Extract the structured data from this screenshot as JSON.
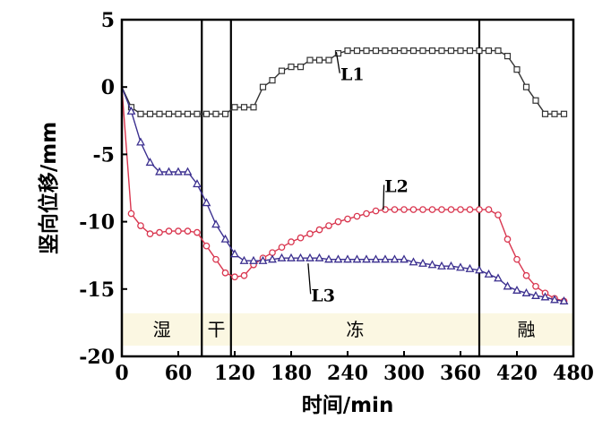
{
  "chart_data": {
    "type": "line",
    "title": "",
    "xlabel": "时间/min",
    "ylabel": "竖向位移/mm",
    "xlim": [
      0,
      480
    ],
    "ylim": [
      -20,
      5
    ],
    "xticks": [
      0,
      60,
      120,
      180,
      240,
      300,
      360,
      420,
      480
    ],
    "yticks": [
      5,
      0,
      -5,
      -10,
      -15,
      -20
    ],
    "grid": false,
    "legend": "none",
    "phase_boundaries": [
      85,
      116,
      380
    ],
    "phases": [
      {
        "label": "湿",
        "from": 0,
        "to": 85
      },
      {
        "label": "干",
        "from": 85,
        "to": 116
      },
      {
        "label": "冻",
        "from": 116,
        "to": 380
      },
      {
        "label": "融",
        "from": 380,
        "to": 480
      }
    ],
    "phase_band_ylim": [
      -19.2,
      -16.8
    ],
    "phase_band_color": "#fbf7e2",
    "series": [
      {
        "name": "L1",
        "color": "#333333",
        "marker": "square",
        "label_at": [
          245,
          0.5
        ],
        "leader_to": [
          228,
          2.6
        ],
        "x": [
          0,
          10,
          20,
          30,
          40,
          50,
          60,
          70,
          80,
          90,
          100,
          110,
          120,
          130,
          140,
          150,
          160,
          170,
          180,
          190,
          200,
          210,
          220,
          230,
          240,
          250,
          260,
          270,
          280,
          290,
          300,
          310,
          320,
          330,
          340,
          350,
          360,
          370,
          380,
          390,
          400,
          410,
          420,
          430,
          440,
          450,
          460,
          470
        ],
        "y": [
          0,
          -1.5,
          -2,
          -2,
          -2,
          -2,
          -2,
          -2,
          -2,
          -2,
          -2,
          -2,
          -1.5,
          -1.5,
          -1.5,
          0,
          0.5,
          1.2,
          1.5,
          1.5,
          2,
          2,
          2,
          2.5,
          2.7,
          2.7,
          2.7,
          2.7,
          2.7,
          2.7,
          2.7,
          2.7,
          2.7,
          2.7,
          2.7,
          2.7,
          2.7,
          2.7,
          2.7,
          2.7,
          2.7,
          2.3,
          1.3,
          0,
          -1,
          -2,
          -2,
          -2
        ]
      },
      {
        "name": "L2",
        "color": "#d9364f",
        "marker": "circle",
        "label_at": [
          292,
          -7.8
        ],
        "leader_to": [
          278,
          -9.1
        ],
        "x": [
          0,
          10,
          20,
          30,
          40,
          50,
          60,
          70,
          80,
          90,
          100,
          110,
          120,
          130,
          140,
          150,
          160,
          170,
          180,
          190,
          200,
          210,
          220,
          230,
          240,
          250,
          260,
          270,
          280,
          290,
          300,
          310,
          320,
          330,
          340,
          350,
          360,
          370,
          380,
          390,
          400,
          410,
          420,
          430,
          440,
          450,
          460,
          470
        ],
        "y": [
          0,
          -9.4,
          -10.3,
          -10.9,
          -10.8,
          -10.7,
          -10.7,
          -10.7,
          -10.8,
          -11.8,
          -12.8,
          -13.8,
          -14.1,
          -14,
          -13.2,
          -12.7,
          -12.3,
          -11.9,
          -11.5,
          -11.2,
          -10.9,
          -10.6,
          -10.3,
          -10,
          -9.8,
          -9.6,
          -9.4,
          -9.2,
          -9.1,
          -9.1,
          -9.1,
          -9.1,
          -9.1,
          -9.1,
          -9.1,
          -9.1,
          -9.1,
          -9.1,
          -9.1,
          -9.1,
          -9.5,
          -11.3,
          -12.8,
          -14,
          -14.8,
          -15.3,
          -15.7,
          -15.9
        ]
      },
      {
        "name": "L3",
        "color": "#3b2f8f",
        "marker": "triangle",
        "label_at": [
          214,
          -15.9
        ],
        "leader_to": [
          198,
          -13.1
        ],
        "x": [
          0,
          10,
          20,
          30,
          40,
          50,
          60,
          70,
          80,
          90,
          100,
          110,
          120,
          130,
          140,
          150,
          160,
          170,
          180,
          190,
          200,
          210,
          220,
          230,
          240,
          250,
          260,
          270,
          280,
          290,
          300,
          310,
          320,
          330,
          340,
          350,
          360,
          370,
          380,
          390,
          400,
          410,
          420,
          430,
          440,
          450,
          460,
          470
        ],
        "y": [
          0,
          -1.8,
          -4.1,
          -5.6,
          -6.3,
          -6.3,
          -6.3,
          -6.3,
          -7.2,
          -8.6,
          -10.2,
          -11.3,
          -12.4,
          -12.9,
          -12.9,
          -12.9,
          -12.8,
          -12.7,
          -12.7,
          -12.7,
          -12.7,
          -12.7,
          -12.8,
          -12.8,
          -12.8,
          -12.8,
          -12.8,
          -12.8,
          -12.8,
          -12.8,
          -12.8,
          -13,
          -13.1,
          -13.2,
          -13.3,
          -13.3,
          -13.4,
          -13.5,
          -13.6,
          -13.9,
          -14.2,
          -14.8,
          -15.1,
          -15.3,
          -15.5,
          -15.6,
          -15.8,
          -15.9
        ]
      }
    ]
  }
}
